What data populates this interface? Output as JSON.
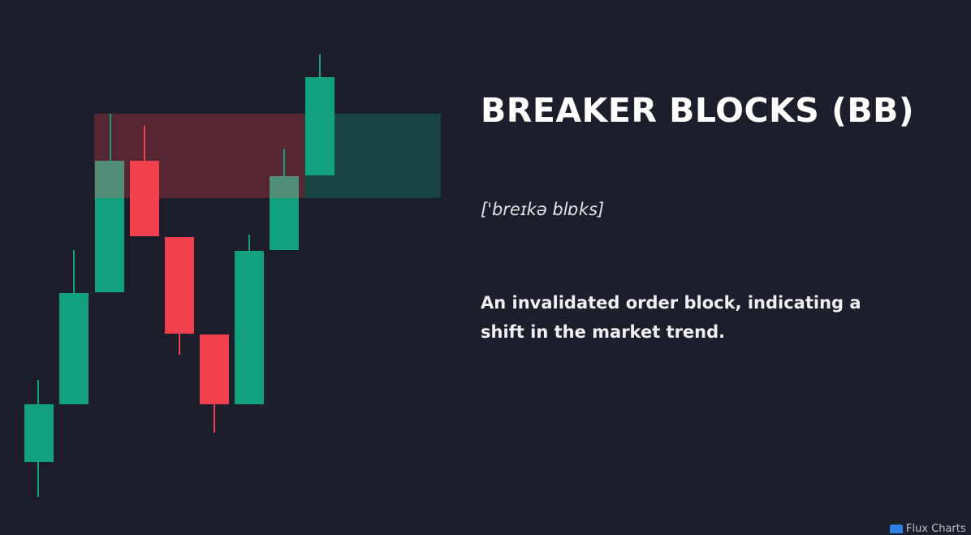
{
  "title": "BREAKER BLOCKS (BB)",
  "pronunciation": "['breɪkə blɒks]",
  "description": "An invalidated order block, indicating a shift in the market trend.",
  "logo": "Flux Charts"
}
